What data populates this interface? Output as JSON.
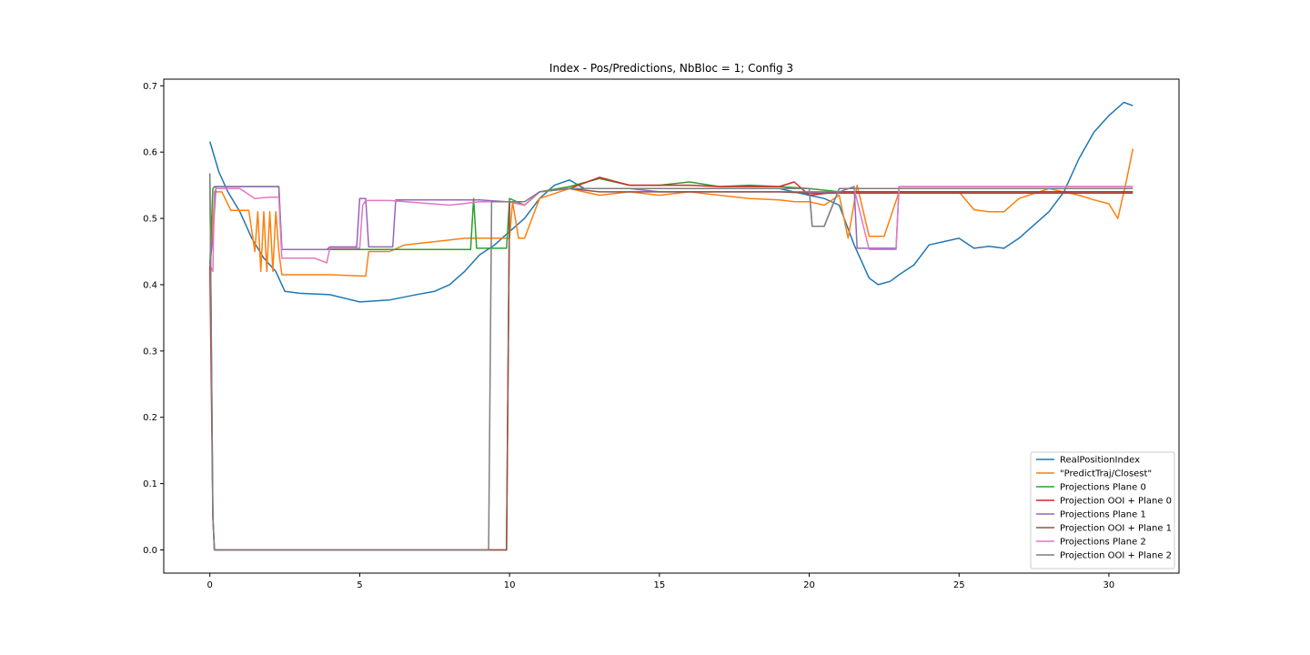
{
  "chart_data": {
    "type": "line",
    "title": "Index - Pos/Predictions, NbBloc = 1; Config 3",
    "xlabel": "",
    "ylabel": "",
    "xlim": [
      -1.54,
      32.34
    ],
    "ylim": [
      -0.035,
      0.71
    ],
    "xticks": [
      0,
      5,
      10,
      15,
      20,
      25,
      30
    ],
    "xtick_labels": [
      "0",
      "5",
      "10",
      "15",
      "20",
      "25",
      "30"
    ],
    "yticks": [
      0.0,
      0.1,
      0.2,
      0.3,
      0.4,
      0.5,
      0.6,
      0.7
    ],
    "ytick_labels": [
      "0.0",
      "0.1",
      "0.2",
      "0.3",
      "0.4",
      "0.5",
      "0.6",
      "0.7"
    ],
    "grid": false,
    "legend_position": "lower-right",
    "series": [
      {
        "name": "RealPositionIndex",
        "color": "#1f77b4",
        "x": [
          0,
          0.3,
          0.6,
          1.0,
          1.4,
          1.8,
          2.2,
          2.5,
          3.0,
          4.0,
          5.0,
          6.0,
          7.0,
          7.5,
          8.0,
          8.5,
          9.0,
          9.5,
          10.0,
          10.5,
          11.0,
          11.5,
          12.0,
          12.5,
          13.0,
          14.0,
          15.0,
          16.0,
          17.0,
          18.0,
          19.0,
          20.0,
          20.5,
          21.0,
          21.5,
          22.0,
          22.3,
          22.7,
          23.0,
          23.5,
          24.0,
          25.0,
          25.5,
          26.0,
          26.5,
          27.0,
          27.5,
          28.0,
          28.5,
          29.0,
          29.5,
          30.0,
          30.5,
          30.8
        ],
        "y": [
          0.616,
          0.57,
          0.54,
          0.51,
          0.47,
          0.44,
          0.42,
          0.39,
          0.387,
          0.385,
          0.374,
          0.377,
          0.386,
          0.39,
          0.4,
          0.42,
          0.445,
          0.46,
          0.48,
          0.5,
          0.53,
          0.55,
          0.558,
          0.545,
          0.545,
          0.545,
          0.545,
          0.545,
          0.545,
          0.545,
          0.545,
          0.535,
          0.53,
          0.52,
          0.46,
          0.41,
          0.4,
          0.405,
          0.415,
          0.43,
          0.46,
          0.47,
          0.455,
          0.458,
          0.455,
          0.47,
          0.49,
          0.51,
          0.54,
          0.59,
          0.63,
          0.655,
          0.675,
          0.67
        ]
      },
      {
        "name": "\"PredictTraj/Closest\"",
        "color": "#ff7f0e",
        "x": [
          0,
          0.15,
          0.2,
          0.4,
          0.7,
          1.0,
          1.3,
          1.5,
          1.6,
          1.7,
          1.8,
          1.9,
          2.0,
          2.1,
          2.2,
          2.3,
          2.4,
          3.0,
          4.0,
          5.2,
          5.3,
          6.0,
          6.5,
          7.5,
          8.5,
          9.5,
          10.0,
          10.1,
          10.3,
          10.5,
          11.0,
          12.0,
          13.0,
          14.0,
          15.0,
          16.0,
          17.0,
          18.0,
          19.0,
          19.5,
          20.0,
          20.5,
          21.0,
          21.3,
          21.6,
          22.0,
          22.5,
          23.0,
          24.0,
          25.0,
          25.5,
          26.0,
          26.5,
          27.0,
          28.0,
          29.0,
          29.5,
          30.0,
          30.3,
          30.6,
          30.8
        ],
        "y": [
          0.43,
          0.53,
          0.54,
          0.54,
          0.512,
          0.512,
          0.512,
          0.45,
          0.51,
          0.42,
          0.51,
          0.42,
          0.51,
          0.42,
          0.51,
          0.45,
          0.415,
          0.415,
          0.415,
          0.413,
          0.45,
          0.45,
          0.46,
          0.465,
          0.47,
          0.47,
          0.47,
          0.525,
          0.47,
          0.47,
          0.53,
          0.545,
          0.535,
          0.54,
          0.535,
          0.54,
          0.535,
          0.53,
          0.528,
          0.525,
          0.525,
          0.52,
          0.535,
          0.47,
          0.55,
          0.473,
          0.473,
          0.54,
          0.54,
          0.54,
          0.513,
          0.51,
          0.51,
          0.53,
          0.545,
          0.535,
          0.528,
          0.522,
          0.5,
          0.56,
          0.605
        ]
      },
      {
        "name": "Projections Plane 0",
        "color": "#2ca02c",
        "x": [
          0,
          0.1,
          0.15,
          0.2,
          0.3,
          2.3,
          2.4,
          8.7,
          8.8,
          8.9,
          9.9,
          10.0,
          10.5,
          11.0,
          12.0,
          13.0,
          14.0,
          15.0,
          16.0,
          17.0,
          18.0,
          19.0,
          20.0,
          21.0,
          22.0,
          23.0,
          30.8
        ],
        "y": [
          0.43,
          0.545,
          0.548,
          0.548,
          0.548,
          0.548,
          0.453,
          0.453,
          0.53,
          0.455,
          0.455,
          0.53,
          0.52,
          0.54,
          0.548,
          0.56,
          0.55,
          0.55,
          0.555,
          0.548,
          0.55,
          0.548,
          0.545,
          0.54,
          0.54,
          0.54,
          0.54
        ]
      },
      {
        "name": "Projection OOI + Plane 0",
        "color": "#d62728",
        "x": [
          0,
          0.1,
          0.15,
          9.9,
          10.0,
          10.5,
          11.0,
          12.0,
          13.0,
          14.0,
          15.0,
          16.0,
          17.0,
          18.0,
          19.0,
          19.5,
          20.0,
          21.0,
          22.0,
          23.0,
          30.8
        ],
        "y": [
          0.43,
          0.05,
          0.0,
          0.0,
          0.525,
          0.52,
          0.54,
          0.545,
          0.562,
          0.55,
          0.55,
          0.55,
          0.548,
          0.548,
          0.548,
          0.555,
          0.535,
          0.54,
          0.54,
          0.54,
          0.54
        ]
      },
      {
        "name": "Projections Plane 1",
        "color": "#9467bd",
        "x": [
          0,
          0.1,
          0.2,
          0.3,
          2.3,
          2.4,
          3.9,
          4.0,
          4.9,
          5.0,
          5.2,
          5.3,
          6.1,
          6.2,
          8.5,
          9.0,
          9.9,
          10.0,
          10.5,
          11.0,
          12.0,
          13.0,
          14.0,
          15.0,
          16.0,
          17.0,
          18.0,
          19.0,
          20.0,
          20.5,
          21.0,
          21.5,
          21.6,
          22.0,
          22.9,
          23.0,
          30.8
        ],
        "y": [
          0.43,
          0.47,
          0.548,
          0.548,
          0.548,
          0.453,
          0.453,
          0.457,
          0.457,
          0.53,
          0.53,
          0.457,
          0.457,
          0.528,
          0.528,
          0.528,
          0.525,
          0.525,
          0.52,
          0.54,
          0.545,
          0.545,
          0.545,
          0.54,
          0.54,
          0.54,
          0.54,
          0.54,
          0.54,
          0.54,
          0.54,
          0.548,
          0.455,
          0.455,
          0.455,
          0.548,
          0.548
        ]
      },
      {
        "name": "Projection OOI + Plane 1",
        "color": "#8c564b",
        "x": [
          0,
          0.1,
          0.15,
          9.9,
          10.0,
          10.5,
          11.0,
          12.0,
          13.0,
          14.0,
          15.0,
          16.0,
          17.0,
          18.0,
          19.0,
          20.0,
          21.0,
          22.0,
          23.0,
          30.8
        ],
        "y": [
          0.568,
          0.05,
          0.0,
          0.0,
          0.525,
          0.52,
          0.54,
          0.545,
          0.54,
          0.54,
          0.54,
          0.54,
          0.54,
          0.54,
          0.54,
          0.538,
          0.538,
          0.538,
          0.538,
          0.538
        ]
      },
      {
        "name": "Projections Plane 2",
        "color": "#e377c2",
        "x": [
          0,
          0.1,
          0.15,
          0.2,
          0.3,
          0.5,
          1.0,
          1.5,
          2.0,
          2.3,
          2.4,
          3.0,
          3.5,
          3.9,
          4.0,
          4.5,
          5.0,
          5.1,
          5.2,
          6.0,
          8.0,
          9.0,
          9.9,
          10.0,
          10.5,
          11.0,
          12.0,
          13.0,
          14.0,
          15.0,
          16.0,
          17.0,
          18.0,
          19.0,
          20.0,
          20.1,
          20.5,
          21.0,
          21.5,
          22.0,
          22.9,
          23.0,
          30.8
        ],
        "y": [
          0.43,
          0.42,
          0.54,
          0.545,
          0.545,
          0.545,
          0.545,
          0.53,
          0.532,
          0.532,
          0.44,
          0.44,
          0.44,
          0.433,
          0.455,
          0.455,
          0.455,
          0.52,
          0.527,
          0.527,
          0.52,
          0.525,
          0.525,
          0.525,
          0.52,
          0.54,
          0.545,
          0.545,
          0.545,
          0.545,
          0.545,
          0.545,
          0.545,
          0.545,
          0.545,
          0.488,
          0.488,
          0.545,
          0.545,
          0.453,
          0.453,
          0.548,
          0.548
        ]
      },
      {
        "name": "Projection OOI + Plane 2",
        "color": "#7f7f7f",
        "x": [
          0,
          0.1,
          0.15,
          9.3,
          9.4,
          9.9,
          10.0,
          10.5,
          11.0,
          12.0,
          13.0,
          14.0,
          15.0,
          16.0,
          17.0,
          18.0,
          19.0,
          20.0,
          20.1,
          20.5,
          21.0,
          22.0,
          23.0,
          30.8
        ],
        "y": [
          0.568,
          0.05,
          0.0,
          0.0,
          0.525,
          0.525,
          0.525,
          0.525,
          0.54,
          0.545,
          0.545,
          0.545,
          0.545,
          0.545,
          0.545,
          0.545,
          0.545,
          0.545,
          0.488,
          0.488,
          0.545,
          0.545,
          0.545,
          0.545
        ]
      }
    ]
  }
}
